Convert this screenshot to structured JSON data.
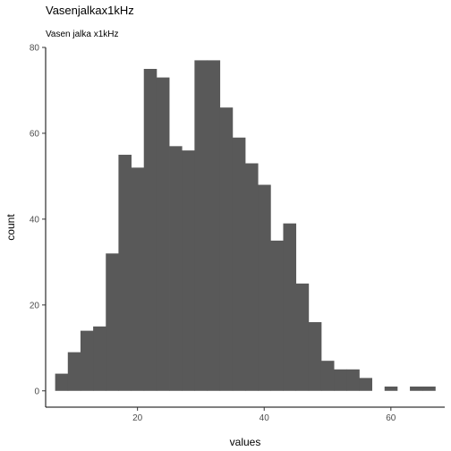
{
  "chart_data": {
    "type": "bar",
    "title": "Vasenjalkax1kHz",
    "subtitle": "Vasen jalka x1kHz",
    "xlabel": "values",
    "ylabel": "count",
    "xlim": [
      5.5,
      68.5
    ],
    "ylim": [
      -3.8,
      80
    ],
    "x_ticks": [
      20,
      40,
      60
    ],
    "y_ticks": [
      0,
      20,
      40,
      60,
      80
    ],
    "bin_width": 2,
    "bars": [
      {
        "x": 8,
        "value": 4
      },
      {
        "x": 10,
        "value": 9
      },
      {
        "x": 12,
        "value": 14
      },
      {
        "x": 14,
        "value": 15
      },
      {
        "x": 16,
        "value": 32
      },
      {
        "x": 18,
        "value": 55
      },
      {
        "x": 20,
        "value": 52
      },
      {
        "x": 22,
        "value": 75
      },
      {
        "x": 24,
        "value": 73
      },
      {
        "x": 26,
        "value": 57
      },
      {
        "x": 28,
        "value": 56
      },
      {
        "x": 30,
        "value": 77
      },
      {
        "x": 32,
        "value": 77
      },
      {
        "x": 34,
        "value": 66
      },
      {
        "x": 36,
        "value": 59
      },
      {
        "x": 38,
        "value": 53
      },
      {
        "x": 40,
        "value": 48
      },
      {
        "x": 42,
        "value": 35
      },
      {
        "x": 44,
        "value": 39
      },
      {
        "x": 46,
        "value": 25
      },
      {
        "x": 48,
        "value": 16
      },
      {
        "x": 50,
        "value": 7
      },
      {
        "x": 52,
        "value": 5
      },
      {
        "x": 54,
        "value": 5
      },
      {
        "x": 56,
        "value": 3
      },
      {
        "x": 58,
        "value": 0
      },
      {
        "x": 60,
        "value": 1
      },
      {
        "x": 62,
        "value": 0
      },
      {
        "x": 64,
        "value": 1
      },
      {
        "x": 66,
        "value": 1
      }
    ],
    "bar_color": "#595959",
    "grid": false
  }
}
